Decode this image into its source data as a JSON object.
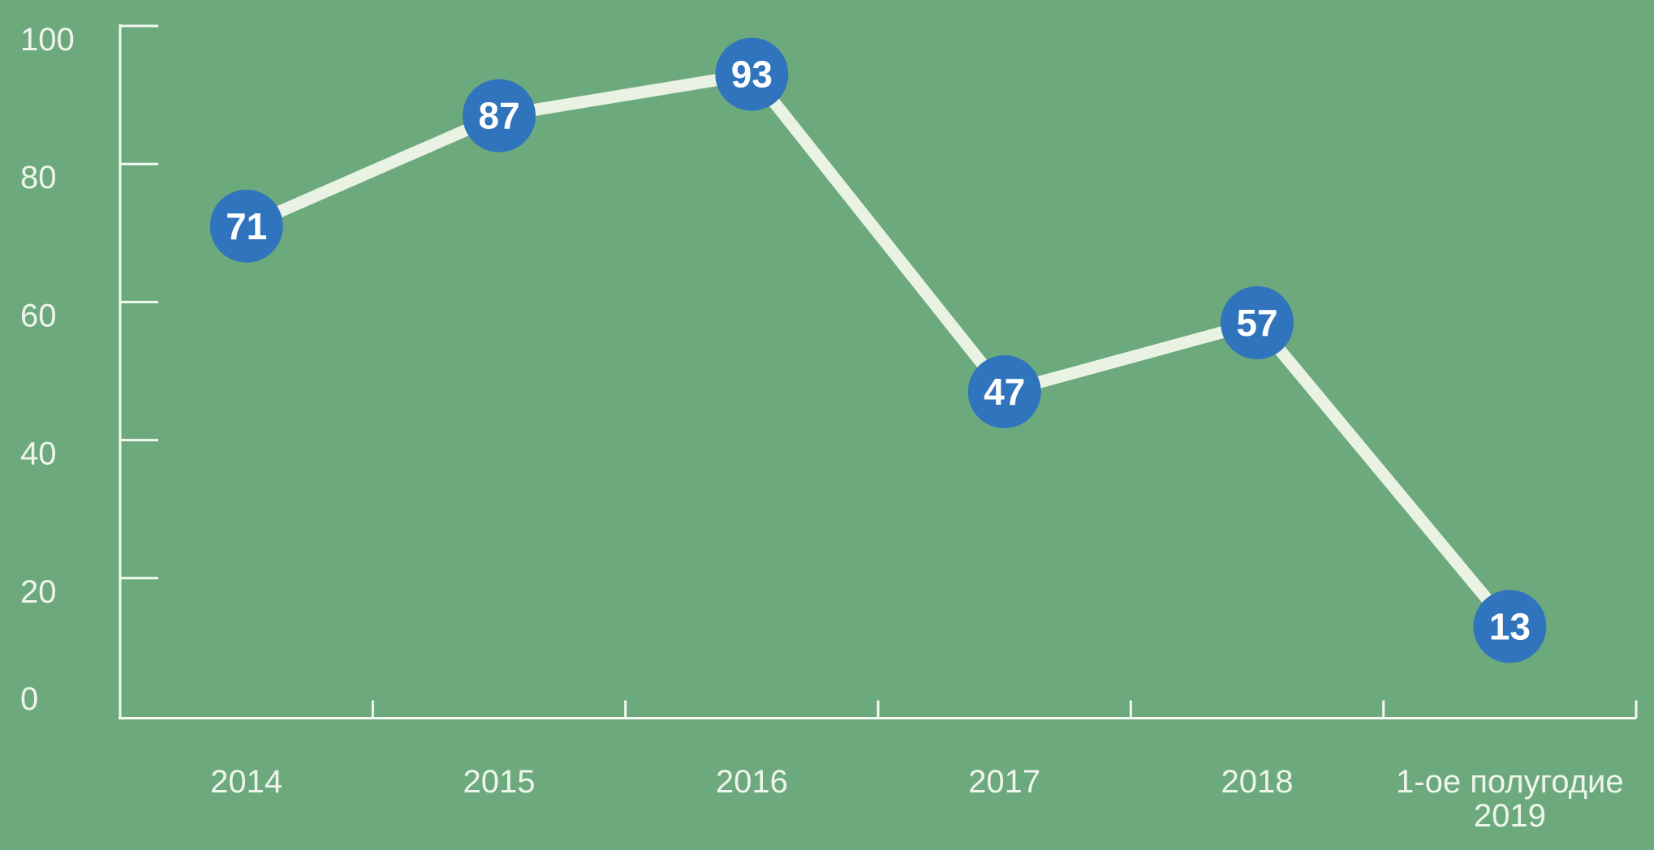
{
  "chart_data": {
    "type": "line",
    "title": "",
    "xlabel": "",
    "ylabel": "",
    "categories": [
      "2014",
      "2015",
      "2016",
      "2017",
      "2018",
      "1-ое полугодие\n2019"
    ],
    "series": [
      {
        "name": "",
        "values": [
          71,
          87,
          93,
          47,
          57,
          13
        ]
      }
    ],
    "values": [
      71,
      87,
      93,
      47,
      57,
      13
    ],
    "point_labels": [
      "71",
      "87",
      "93",
      "47",
      "57",
      "13"
    ],
    "ylim": [
      0,
      100
    ],
    "yticks": [
      0,
      20,
      40,
      60,
      80,
      100
    ],
    "ytick_labels": [
      "0",
      "20",
      "40",
      "60",
      "80",
      "100"
    ],
    "grid": false,
    "legend": "none",
    "marker_style": "filled-circle-with-value",
    "colors": {
      "background": "#6CAA7E",
      "line": "#EAF3E3",
      "marker_fill": "#2F74BC",
      "marker_text": "#FFFFFF",
      "axis": "#F3F8F0",
      "tick_label": "#EFF5EC"
    }
  }
}
